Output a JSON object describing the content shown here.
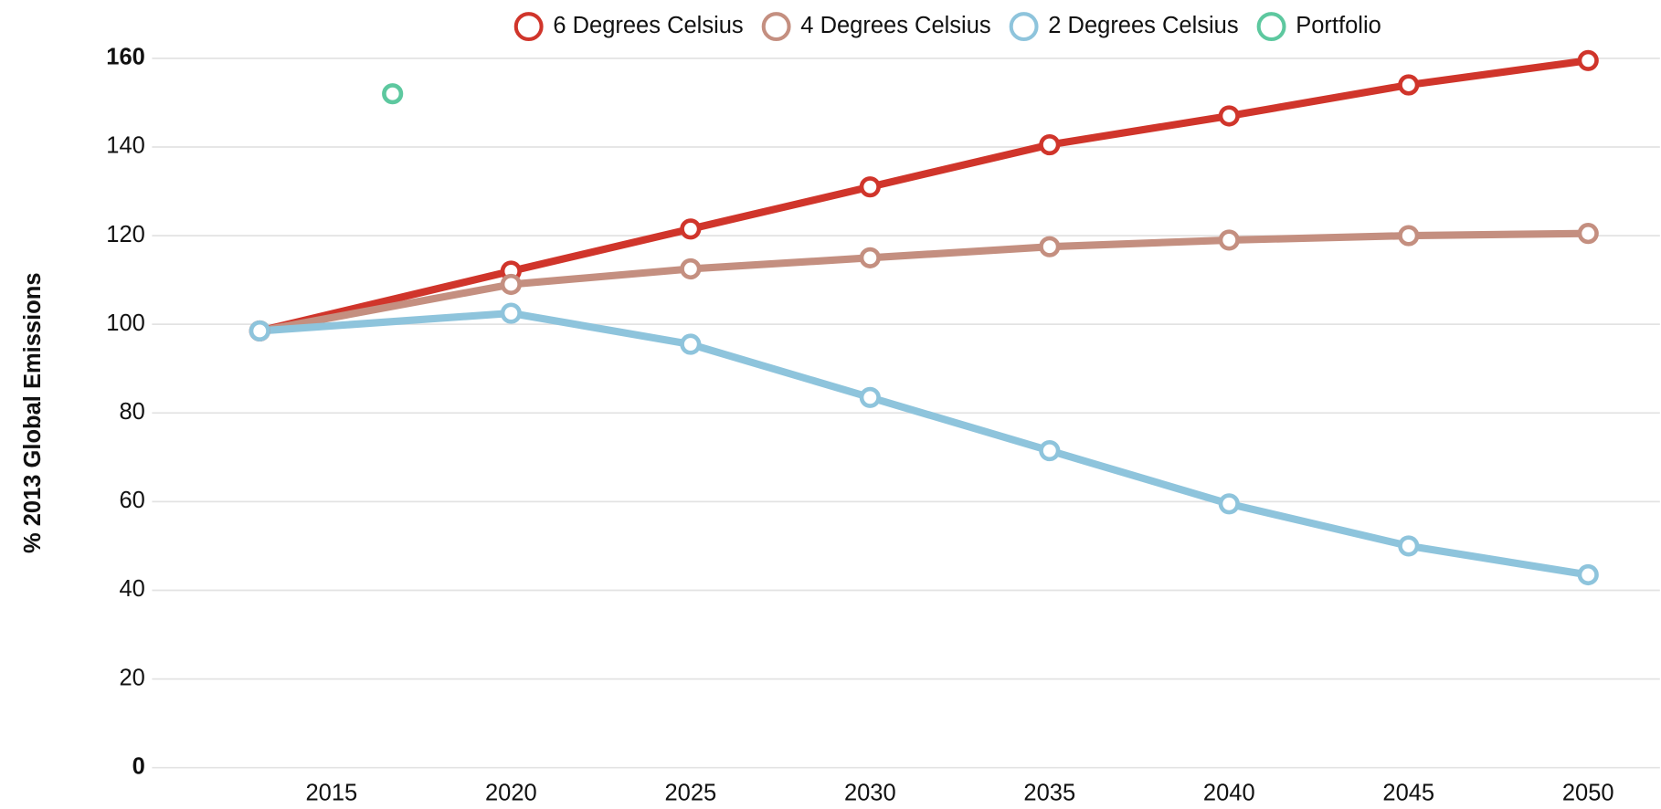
{
  "chart_data": {
    "type": "line",
    "y_label": "% 2013 Global Emissions",
    "x": [
      2013,
      2020,
      2025,
      2030,
      2035,
      2040,
      2045,
      2050
    ],
    "series": [
      {
        "name": "6 Degrees Celsius",
        "color": "#d0352b",
        "values": [
          98.5,
          112,
          121.5,
          131,
          140.5,
          147,
          154,
          159.5
        ]
      },
      {
        "name": "4 Degrees Celsius",
        "color": "#c48f80",
        "values": [
          98.5,
          109,
          112.5,
          115,
          117.5,
          119,
          120,
          120.5
        ]
      },
      {
        "name": "2 Degrees Celsius",
        "color": "#8ec4dc",
        "values": [
          98.5,
          102.5,
          95.5,
          83.5,
          71.5,
          59.5,
          50,
          43.5
        ]
      },
      {
        "name": "Portfolio",
        "color": "#5dc89f",
        "x": [
          2016.7
        ],
        "values": [
          152
        ],
        "line": false
      }
    ],
    "xlim": [
      2010,
      2052
    ],
    "xticks": [
      2015,
      2020,
      2025,
      2030,
      2035,
      2040,
      2045,
      2050
    ],
    "ylim": [
      0,
      160
    ],
    "yticks": [
      0,
      20,
      40,
      60,
      80,
      100,
      120,
      140,
      160
    ],
    "grid": true,
    "legend": "top"
  }
}
